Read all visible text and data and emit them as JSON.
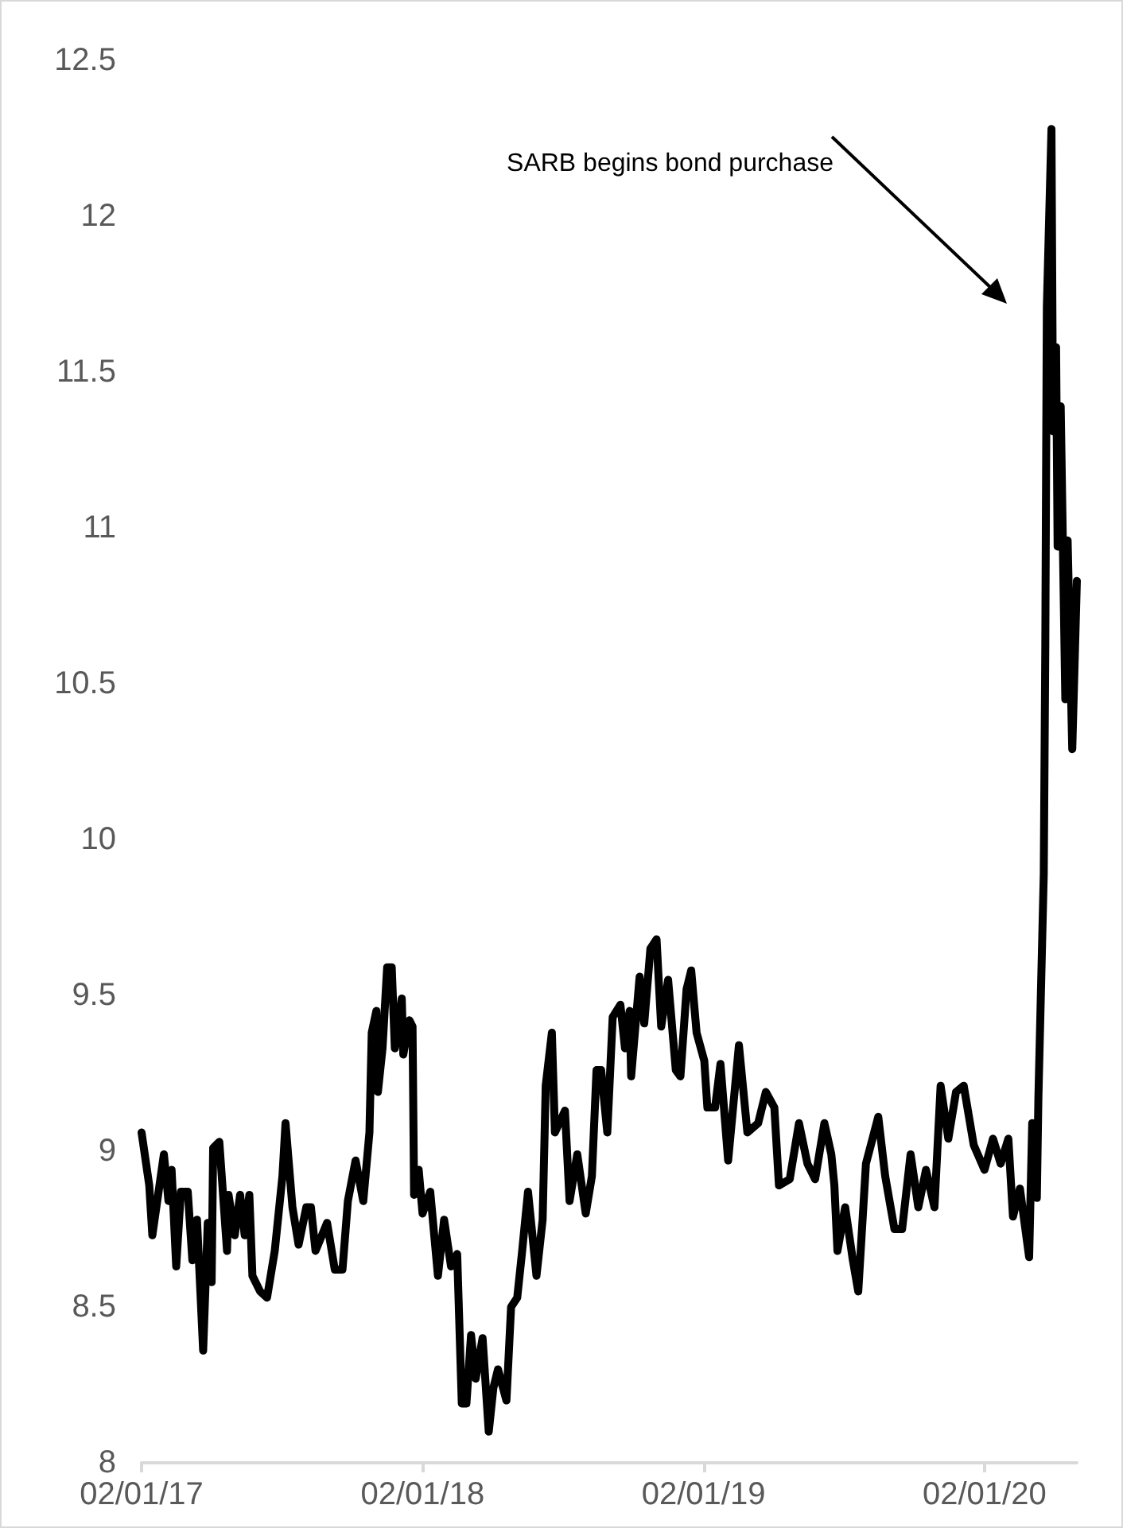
{
  "chart_data": {
    "type": "line",
    "x": [
      "2017-01-02",
      "2017-01-12",
      "2017-01-16",
      "2017-01-31",
      "2017-02-06",
      "2017-02-10",
      "2017-02-16",
      "2017-02-22",
      "2017-03-03",
      "2017-03-09",
      "2017-03-15",
      "2017-03-23",
      "2017-03-29",
      "2017-04-03",
      "2017-04-05",
      "2017-04-13",
      "2017-04-23",
      "2017-04-25",
      "2017-05-03",
      "2017-05-10",
      "2017-05-16",
      "2017-05-22",
      "2017-05-26",
      "2017-06-05",
      "2017-06-14",
      "2017-06-24",
      "2017-07-04",
      "2017-07-08",
      "2017-07-17",
      "2017-07-25",
      "2017-08-04",
      "2017-08-10",
      "2017-08-16",
      "2017-08-31",
      "2017-09-10",
      "2017-09-20",
      "2017-09-27",
      "2017-10-07",
      "2017-10-17",
      "2017-10-25",
      "2017-10-28",
      "2017-11-03",
      "2017-11-05",
      "2017-11-11",
      "2017-11-17",
      "2017-11-23",
      "2017-11-27",
      "2017-12-06",
      "2017-12-08",
      "2017-12-16",
      "2017-12-20",
      "2017-12-22",
      "2017-12-28",
      "2018-01-02",
      "2018-01-12",
      "2018-01-22",
      "2018-01-30",
      "2018-02-08",
      "2018-02-16",
      "2018-02-22",
      "2018-02-28",
      "2018-03-06",
      "2018-03-12",
      "2018-03-21",
      "2018-03-29",
      "2018-04-04",
      "2018-04-10",
      "2018-04-21",
      "2018-04-27",
      "2018-05-05",
      "2018-05-11",
      "2018-05-19",
      "2018-05-30",
      "2018-06-07",
      "2018-06-11",
      "2018-06-19",
      "2018-06-23",
      "2018-07-06",
      "2018-07-12",
      "2018-07-22",
      "2018-08-02",
      "2018-08-10",
      "2018-08-16",
      "2018-08-22",
      "2018-08-30",
      "2018-09-06",
      "2018-09-16",
      "2018-09-22",
      "2018-09-28",
      "2018-09-30",
      "2018-10-11",
      "2018-10-17",
      "2018-10-25",
      "2018-11-02",
      "2018-11-08",
      "2018-11-17",
      "2018-11-27",
      "2018-12-03",
      "2018-12-11",
      "2018-12-17",
      "2018-12-24",
      "2019-01-03",
      "2019-01-07",
      "2019-01-17",
      "2019-01-24",
      "2019-02-03",
      "2019-02-17",
      "2019-02-28",
      "2019-03-14",
      "2019-03-24",
      "2019-04-04",
      "2019-04-10",
      "2019-04-24",
      "2019-05-06",
      "2019-05-17",
      "2019-05-27",
      "2019-06-08",
      "2019-06-17",
      "2019-06-21",
      "2019-06-25",
      "2019-07-05",
      "2019-07-15",
      "2019-07-22",
      "2019-08-01",
      "2019-08-17",
      "2019-08-26",
      "2019-09-07",
      "2019-09-17",
      "2019-09-28",
      "2019-10-08",
      "2019-10-18",
      "2019-10-29",
      "2019-11-06",
      "2019-11-16",
      "2019-11-26",
      "2019-12-06",
      "2019-12-19",
      "2020-01-02",
      "2020-01-13",
      "2020-01-23",
      "2020-02-02",
      "2020-02-08",
      "2020-02-17",
      "2020-02-29",
      "2020-03-04",
      "2020-03-10",
      "2020-03-12",
      "2020-03-19",
      "2020-03-21",
      "2020-03-23",
      "2020-03-29",
      "2020-03-31",
      "2020-04-04",
      "2020-04-06",
      "2020-04-10",
      "2020-04-16",
      "2020-04-19",
      "2020-04-25",
      "2020-05-01"
    ],
    "series": [
      {
        "color": "#000000",
        "values": [
          9.06,
          8.89,
          8.73,
          8.99,
          8.84,
          8.94,
          8.63,
          8.87,
          8.87,
          8.65,
          8.78,
          8.36,
          8.77,
          8.58,
          9.01,
          9.03,
          8.68,
          8.86,
          8.73,
          8.86,
          8.73,
          8.86,
          8.6,
          8.55,
          8.53,
          8.68,
          8.92,
          9.09,
          8.82,
          8.7,
          8.82,
          8.82,
          8.68,
          8.77,
          8.62,
          8.62,
          8.84,
          8.97,
          8.84,
          9.06,
          9.38,
          9.45,
          9.19,
          9.33,
          9.59,
          9.59,
          9.33,
          9.49,
          9.31,
          9.42,
          9.4,
          8.86,
          8.94,
          8.8,
          8.87,
          8.6,
          8.78,
          8.63,
          8.67,
          8.19,
          8.19,
          8.41,
          8.27,
          8.4,
          8.1,
          8.24,
          8.3,
          8.2,
          8.5,
          8.53,
          8.67,
          8.87,
          8.6,
          8.78,
          9.21,
          9.38,
          9.06,
          9.13,
          8.84,
          8.99,
          8.8,
          8.92,
          9.26,
          9.26,
          9.06,
          9.43,
          9.47,
          9.33,
          9.45,
          9.24,
          9.56,
          9.41,
          9.65,
          9.68,
          9.4,
          9.55,
          9.26,
          9.24,
          9.52,
          9.58,
          9.38,
          9.29,
          9.14,
          9.14,
          9.28,
          8.97,
          9.34,
          9.06,
          9.09,
          9.19,
          9.14,
          8.89,
          8.91,
          9.09,
          8.96,
          8.91,
          9.09,
          8.99,
          8.89,
          8.68,
          8.82,
          8.65,
          8.55,
          8.96,
          9.11,
          8.92,
          8.75,
          8.75,
          8.99,
          8.82,
          8.94,
          8.82,
          9.21,
          9.04,
          9.19,
          9.21,
          9.02,
          8.94,
          9.04,
          8.96,
          9.04,
          8.79,
          8.88,
          8.66,
          9.09,
          8.85,
          9.17,
          9.89,
          10.62,
          11.71,
          12.28,
          11.31,
          11.58,
          10.94,
          11.39,
          10.45,
          10.96,
          10.29,
          10.83
        ]
      }
    ],
    "xlim": [
      "2017-01-02",
      "2020-05-01"
    ],
    "xticks": [
      {
        "value": "2017-01-02",
        "label": "02/01/17"
      },
      {
        "value": "2018-01-02",
        "label": "02/01/18"
      },
      {
        "value": "2019-01-02",
        "label": "02/01/19"
      },
      {
        "value": "2020-01-02",
        "label": "02/01/20"
      }
    ],
    "ylim": [
      8,
      12.5
    ],
    "yticks": [
      8,
      8.5,
      9,
      9.5,
      10,
      10.5,
      11,
      11.5,
      12,
      12.5
    ],
    "annotations": [
      "SARB begins bond purchase"
    ],
    "marker": "none",
    "line_style": "solid"
  }
}
